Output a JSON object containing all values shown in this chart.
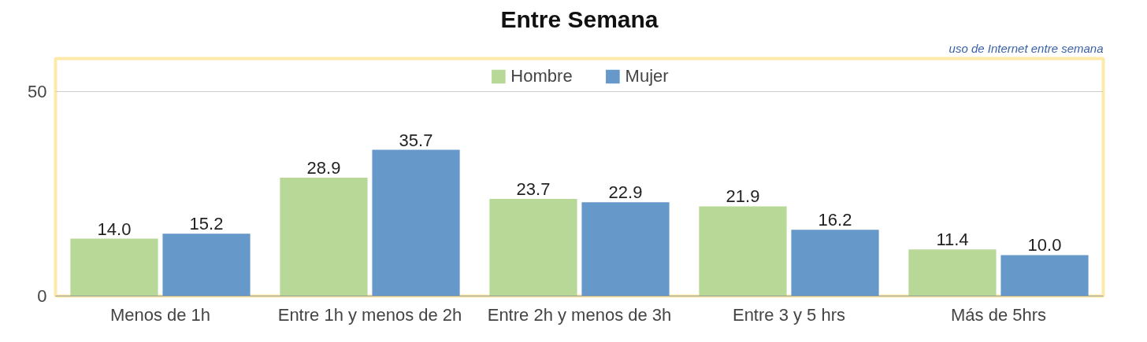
{
  "chart_data": {
    "type": "bar",
    "title": "Entre Semana",
    "annotations": [
      "uso de Internet entre semana"
    ],
    "categories": [
      "Menos de 1h",
      "Entre 1h y menos de 2h",
      "Entre 2h y menos de 3h",
      "Entre 3 y 5 hrs",
      "Más de 5hrs"
    ],
    "series": [
      {
        "name": "Hombre",
        "color": "#b8d898",
        "values": [
          14.0,
          28.9,
          23.7,
          21.9,
          11.4
        ],
        "value_labels": [
          "14.0",
          "28.9",
          "23.7",
          "21.9",
          "11.4"
        ]
      },
      {
        "name": "Mujer",
        "color": "#6699c9",
        "values": [
          15.2,
          35.7,
          22.9,
          16.2,
          10.0
        ],
        "value_labels": [
          "15.2",
          "35.7",
          "22.9",
          "16.2",
          "10.0"
        ]
      }
    ],
    "ylim": [
      0,
      58
    ],
    "yticks": [
      0,
      50
    ],
    "grid": "y",
    "legend": "top"
  }
}
